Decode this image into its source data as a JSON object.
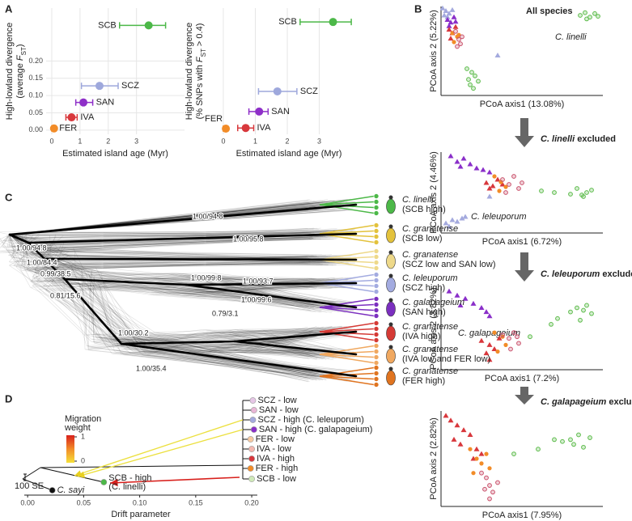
{
  "panel_labels": [
    "A",
    "B",
    "C",
    "D"
  ],
  "chart_data": [
    {
      "type": "scatter",
      "x_label": "Estimated island age (Myr)",
      "y_label": [
        "High-lowland divergence",
        "(average ",
        "F",
        "ST",
        ")"
      ],
      "categories": [
        "SCB",
        "SCZ",
        "SAN",
        "IVA",
        "FER"
      ],
      "colors": [
        "#4cb848",
        "#9ea8dc",
        "#8e2fc8",
        "#d8383c",
        "#f28c28"
      ],
      "x": [
        3.43,
        1.69,
        1.12,
        0.7,
        0.08
      ],
      "values": [
        0.303,
        0.128,
        0.08,
        0.037,
        0.005
      ],
      "xerr_low": [
        2.4,
        1.05,
        0.85,
        0.5,
        0.0
      ],
      "xerr_high": [
        4.03,
        2.35,
        1.45,
        0.9,
        0.15
      ],
      "xlim": [
        -0.2,
        4.7
      ],
      "ylim": [
        -0.012,
        0.353
      ],
      "xticks": [
        0,
        1,
        2,
        3
      ],
      "yticks": [
        {
          "value": 0,
          "label": "0.00"
        },
        {
          "value": 0.05,
          "label": "0.05"
        },
        {
          "value": 0.1,
          "label": "0.10"
        },
        {
          "value": 0.15,
          "label": "0.15"
        },
        {
          "value": 0.2,
          "label": "0.20"
        }
      ],
      "grid": true
    },
    {
      "type": "scatter",
      "x_label": "Estimated island age (Myr)",
      "y_label": [
        "High-lowland divergence",
        "(% SNPs with ",
        "F",
        "ST",
        " > 0.4)"
      ],
      "categories": [
        "SCB",
        "SCZ",
        "SAN",
        "IVA",
        "FER"
      ],
      "colors": [
        "#4cb848",
        "#9ea8dc",
        "#8e2fc8",
        "#d8383c",
        "#f28c28"
      ],
      "x": [
        3.43,
        1.69,
        1.12,
        0.7,
        0.08
      ],
      "values": [
        0.89,
        0.34,
        0.18,
        0.05,
        0.045
      ],
      "xerr_low": [
        2.4,
        1.1,
        0.8,
        0.45,
        0.0
      ],
      "xerr_high": [
        4.0,
        2.3,
        1.4,
        0.95,
        0.14
      ],
      "xlim": [
        -0.1,
        4.2
      ],
      "ylim": [
        0,
        1
      ],
      "xticks": [
        0,
        1,
        2,
        3
      ],
      "grid": true
    },
    {
      "type": "scatter",
      "title_parts": [
        "All species"
      ],
      "annotation": "C. linelli",
      "x_label": "PCoA axis1 (13.08%)",
      "y_label": "PCoA axis 2 (5.22%)",
      "xlim": [
        0,
        1
      ],
      "ylim": [
        0,
        1
      ],
      "series": [
        {
          "color": "#5cbb4a",
          "marker": "circle",
          "x": [
            0.86,
            0.89,
            0.92,
            0.95,
            0.97,
            0.9,
            0.16,
            0.19,
            0.21,
            0.23,
            0.18,
            0.2,
            0.17
          ],
          "values": [
            0.9,
            0.93,
            0.88,
            0.92,
            0.89,
            0.86,
            0.3,
            0.26,
            0.22,
            0.16,
            0.12,
            0.08,
            0.18
          ]
        },
        {
          "color": "#a4aade",
          "marker": "triangle",
          "x": [
            0.01,
            0.03,
            0.05,
            0.04,
            0.07,
            0.02,
            0.35
          ],
          "values": [
            0.98,
            0.95,
            0.92,
            0.88,
            0.96,
            0.9,
            0.45
          ]
        },
        {
          "color": "#8a2fc9",
          "marker": "triangle",
          "x": [
            0.04,
            0.06,
            0.05,
            0.08,
            0.09
          ],
          "values": [
            0.85,
            0.82,
            0.78,
            0.88,
            0.83
          ]
        },
        {
          "color": "#d8373c",
          "marker": "triangle",
          "x": [
            0.05,
            0.07,
            0.09,
            0.06
          ],
          "values": [
            0.74,
            0.7,
            0.77,
            0.64
          ]
        },
        {
          "color": "#f28c28",
          "marker": "dot",
          "x": [
            0.07,
            0.1,
            0.08,
            0.11
          ],
          "values": [
            0.7,
            0.66,
            0.6,
            0.68
          ]
        },
        {
          "color": "#c9506a",
          "marker": "circle",
          "x": [
            0.09,
            0.11,
            0.12,
            0.1,
            0.13
          ],
          "values": [
            0.72,
            0.63,
            0.58,
            0.55,
            0.66
          ]
        }
      ]
    },
    {
      "type": "scatter",
      "title_parts": [
        "C. linelli",
        " excluded"
      ],
      "annotation": "C. leleuporum",
      "x_label": "PCoA axis1 (6.72%)",
      "y_label": "PCoA axis 2 (4.46%)",
      "xlim": [
        0,
        1
      ],
      "ylim": [
        0,
        1
      ],
      "series": [
        {
          "color": "#8a2fc9",
          "marker": "triangle",
          "x": [
            0.06,
            0.1,
            0.14,
            0.18,
            0.22,
            0.26,
            0.12,
            0.3
          ],
          "values": [
            0.95,
            0.88,
            0.92,
            0.85,
            0.8,
            0.78,
            0.82,
            0.75
          ]
        },
        {
          "color": "#d8373c",
          "marker": "triangle",
          "x": [
            0.28,
            0.32,
            0.35,
            0.3,
            0.38
          ],
          "values": [
            0.62,
            0.58,
            0.66,
            0.55,
            0.6
          ]
        },
        {
          "color": "#f28c28",
          "marker": "dot",
          "x": [
            0.33,
            0.37,
            0.4,
            0.36
          ],
          "values": [
            0.7,
            0.63,
            0.57,
            0.52
          ]
        },
        {
          "color": "#c9506a",
          "marker": "circle",
          "x": [
            0.38,
            0.42,
            0.45,
            0.48,
            0.4,
            0.5
          ],
          "values": [
            0.66,
            0.6,
            0.7,
            0.55,
            0.5,
            0.62
          ]
        },
        {
          "color": "#5cbb4a",
          "marker": "circle",
          "x": [
            0.62,
            0.7,
            0.8,
            0.84,
            0.87,
            0.9,
            0.93,
            0.88
          ],
          "values": [
            0.52,
            0.5,
            0.48,
            0.55,
            0.47,
            0.5,
            0.53,
            0.45
          ]
        },
        {
          "color": "#a4aade",
          "marker": "triangle",
          "x": [
            0.03,
            0.07,
            0.1,
            0.13,
            0.05,
            0.15,
            0.3
          ],
          "values": [
            0.12,
            0.16,
            0.14,
            0.18,
            0.08,
            0.2,
            0.45
          ]
        }
      ]
    },
    {
      "type": "scatter",
      "title_parts": [
        "C. leleuporum",
        " excluded"
      ],
      "annotation": "C. galapageium",
      "x_label": "PCoA axis1 (7.2%)",
      "y_label": "PCoA axis 2 (3.82%)",
      "xlim": [
        0,
        1
      ],
      "ylim": [
        0,
        1
      ],
      "series": [
        {
          "color": "#8a2fc9",
          "marker": "triangle",
          "x": [
            0.05,
            0.1,
            0.15,
            0.2,
            0.25,
            0.12,
            0.28,
            0.3
          ],
          "values": [
            0.95,
            0.9,
            0.86,
            0.8,
            0.75,
            0.78,
            0.7,
            0.65
          ]
        },
        {
          "color": "#5cbb4a",
          "marker": "circle",
          "x": [
            0.55,
            0.68,
            0.72,
            0.8,
            0.84,
            0.88,
            0.9,
            0.93,
            0.86
          ],
          "values": [
            0.4,
            0.55,
            0.62,
            0.7,
            0.75,
            0.72,
            0.78,
            0.68,
            0.6
          ]
        },
        {
          "color": "#d8373c",
          "marker": "triangle",
          "x": [
            0.25,
            0.3,
            0.33,
            0.28,
            0.36,
            0.3
          ],
          "values": [
            0.35,
            0.3,
            0.25,
            0.2,
            0.38,
            0.12
          ]
        },
        {
          "color": "#f28c28",
          "marker": "dot",
          "x": [
            0.33,
            0.38,
            0.4,
            0.35
          ],
          "values": [
            0.45,
            0.4,
            0.3,
            0.22
          ]
        },
        {
          "color": "#c9506a",
          "marker": "circle",
          "x": [
            0.38,
            0.42,
            0.45,
            0.48,
            0.43,
            0.47
          ],
          "values": [
            0.42,
            0.38,
            0.45,
            0.32,
            0.25,
            0.4
          ]
        }
      ]
    },
    {
      "type": "scatter",
      "title_parts": [
        "C. galapageium",
        " excluded"
      ],
      "x_label": "PCoA axis1 (7.95%)",
      "y_label": "PCoA axis 2 (2.82%)",
      "xlim": [
        0,
        1
      ],
      "ylim": [
        0,
        1
      ],
      "series": [
        {
          "color": "#d8373c",
          "marker": "triangle",
          "x": [
            0.03,
            0.06,
            0.1,
            0.14,
            0.18,
            0.08,
            0.12,
            0.22,
            0.2,
            0.25
          ],
          "values": [
            0.95,
            0.9,
            0.85,
            0.8,
            0.75,
            0.7,
            0.65,
            0.6,
            0.5,
            0.55
          ]
        },
        {
          "color": "#f28c28",
          "marker": "dot",
          "x": [
            0.18,
            0.22,
            0.25,
            0.28,
            0.3,
            0.2
          ],
          "values": [
            0.6,
            0.5,
            0.45,
            0.55,
            0.4,
            0.35
          ]
        },
        {
          "color": "#c9506a",
          "marker": "circle",
          "x": [
            0.25,
            0.28,
            0.3,
            0.32,
            0.35,
            0.3,
            0.27
          ],
          "values": [
            0.35,
            0.3,
            0.22,
            0.15,
            0.25,
            0.08,
            0.18
          ]
        },
        {
          "color": "#5cbb4a",
          "marker": "circle",
          "x": [
            0.45,
            0.6,
            0.7,
            0.75,
            0.82,
            0.85,
            0.88,
            0.92,
            0.8
          ],
          "values": [
            0.55,
            0.6,
            0.7,
            0.68,
            0.65,
            0.75,
            0.62,
            0.72,
            0.7
          ]
        }
      ]
    },
    {
      "type": "tree",
      "x_label": "Drift parameter",
      "xlim": [
        -0.003,
        0.205
      ],
      "xticks": [
        {
          "value": 0,
          "label": "0.00"
        },
        {
          "value": 0.05,
          "label": "0.05"
        },
        {
          "value": 0.1,
          "label": "0.10"
        },
        {
          "value": 0.15,
          "label": "0.15"
        },
        {
          "value": 0.2,
          "label": "0.20"
        }
      ],
      "legend_title": [
        "Migration",
        "weight"
      ],
      "legend_ticks": [
        0,
        1
      ],
      "scale_label": "100 SE",
      "tips": [
        {
          "label": "SCZ - low",
          "x": 0.201,
          "color": "#e6c6e6"
        },
        {
          "label": "SAN - low",
          "x": 0.202,
          "color": "#e9b6d6"
        },
        {
          "label": "SCZ - high (C. leleuporum)",
          "x": 0.201,
          "color": "#a4aade"
        },
        {
          "label": "SAN - high (C. galapageium)",
          "x": 0.202,
          "color": "#8a2fc9"
        },
        {
          "label": "FER - low",
          "x": 0.199,
          "color": "#f7c9a0"
        },
        {
          "label": "IVA - low",
          "x": 0.2,
          "color": "#f3b8b0"
        },
        {
          "label": "IVA - high",
          "x": 0.2,
          "color": "#d8373c"
        },
        {
          "label": "FER - high",
          "x": 0.199,
          "color": "#f28c28"
        },
        {
          "label": "SCB - low",
          "x": 0.2,
          "color": "#cfe9b8"
        },
        {
          "label": "SCB - high",
          "note": "(C. linelli)",
          "x": 0.068,
          "color": "#4cb848"
        },
        {
          "label": "C. sayi",
          "x": 0.022,
          "color": "#111111"
        }
      ]
    }
  ],
  "phylogeny": {
    "supports": [
      "1.00/94.8",
      "1.00/95.8",
      "1.00/94.8",
      "1.00/84.4",
      "0.99/38.5",
      "1.00/99.8",
      "1.00/93.7",
      "0.81/15.6",
      "1.00/99.6",
      "0.79/3.1",
      "1.00/30.2",
      "1.00/35.4"
    ],
    "taxa": [
      {
        "species": "C. linelli",
        "group": "(SCB high)",
        "color": "#4cb848"
      },
      {
        "species": "C. granatense",
        "group": "(SCB low)",
        "color": "#e3c23c"
      },
      {
        "species": "C. granatense",
        "group": "(SCZ low and SAN low)",
        "color": "#eed98a"
      },
      {
        "species": "C. leleuporum",
        "group": "(SCZ high)",
        "color": "#a3abe0"
      },
      {
        "species": "C. galapageium",
        "group": "(SAN high)",
        "color": "#7b2fbf"
      },
      {
        "species": "C. granatense",
        "group": "(IVA high)",
        "color": "#d53a35"
      },
      {
        "species": "C. granatense",
        "group": "(IVA low and FER low)",
        "color": "#f0a860"
      },
      {
        "species": "C. granatense",
        "group": "(FER high)",
        "color": "#e07420"
      }
    ]
  }
}
